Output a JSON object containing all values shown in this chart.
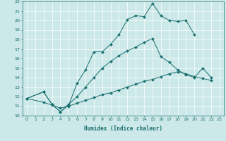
{
  "xlabel": "Humidex (Indice chaleur)",
  "background_color": "#cce8e8",
  "line_color": "#1a7070",
  "grid_color": "#ffffff",
  "xlim": [
    -0.5,
    23.5
  ],
  "ylim": [
    10,
    22
  ],
  "xticks": [
    0,
    1,
    2,
    3,
    4,
    5,
    6,
    7,
    8,
    9,
    10,
    11,
    12,
    13,
    14,
    15,
    16,
    17,
    18,
    19,
    20,
    21,
    22,
    23
  ],
  "yticks": [
    10,
    11,
    12,
    13,
    14,
    15,
    16,
    17,
    18,
    19,
    20,
    21,
    22
  ],
  "line1_x": [
    0,
    2,
    3,
    4,
    5,
    6,
    7,
    8,
    9,
    10,
    11,
    12,
    13,
    14,
    15,
    16,
    17,
    18,
    19,
    20
  ],
  "line1_y": [
    11.8,
    12.5,
    11.2,
    10.4,
    11.1,
    13.4,
    14.8,
    16.7,
    16.7,
    17.5,
    18.5,
    20.1,
    20.5,
    20.4,
    21.8,
    20.5,
    20.0,
    19.9,
    20.0,
    18.5
  ],
  "line2_x": [
    0,
    2,
    3,
    4,
    5,
    6,
    7,
    8,
    9,
    10,
    11,
    12,
    13,
    14,
    15,
    16,
    17,
    18,
    19,
    20,
    21,
    22
  ],
  "line2_y": [
    11.8,
    12.5,
    11.2,
    10.4,
    11.2,
    12.0,
    13.0,
    14.0,
    15.0,
    15.7,
    16.3,
    16.8,
    17.2,
    17.7,
    18.1,
    16.2,
    15.6,
    14.8,
    14.3,
    14.0,
    15.0,
    14.0
  ],
  "line3_x": [
    0,
    2,
    3,
    4,
    5,
    6,
    7,
    8,
    9,
    10,
    11,
    12,
    13,
    14,
    15,
    16,
    17,
    18,
    19,
    20,
    21,
    22
  ],
  "line3_y": [
    11.8,
    11.4,
    11.1,
    10.8,
    11.0,
    11.3,
    11.6,
    11.9,
    12.2,
    12.4,
    12.7,
    13.0,
    13.3,
    13.6,
    13.8,
    14.1,
    14.4,
    14.6,
    14.4,
    14.1,
    13.9,
    13.7
  ]
}
